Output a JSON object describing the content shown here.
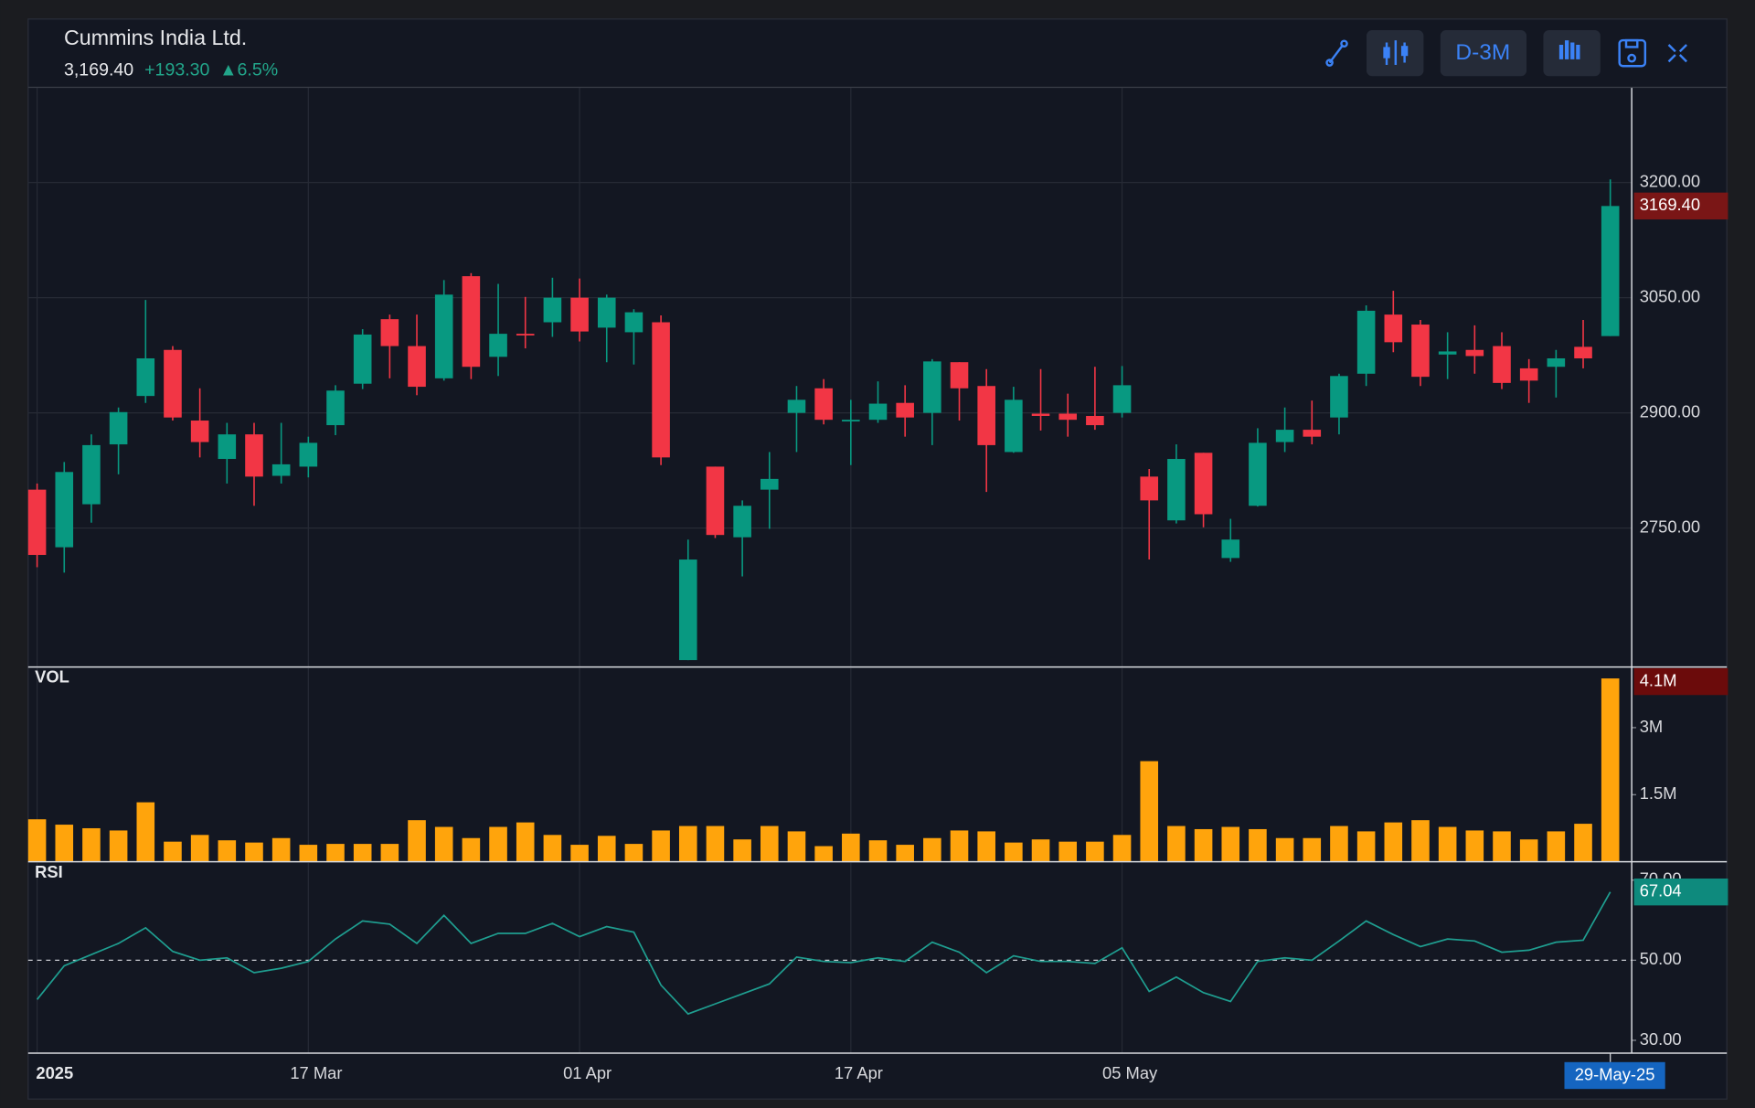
{
  "header": {
    "title": "Cummins India Ltd.",
    "price": "3,169.40",
    "change": "+193.30",
    "change_pct": "▲6.5%",
    "interval": "D-3M"
  },
  "chart_data": [
    {
      "type": "candlestick",
      "up_color": "#089981",
      "down_color": "#f23645",
      "grid": true,
      "xlim": [
        -0.33,
        58.79
      ],
      "xticks": [
        {
          "value": 0,
          "label": "2025"
        },
        {
          "value": 10,
          "label": "17 Mar"
        },
        {
          "value": 20,
          "label": "01 Apr"
        },
        {
          "value": 30,
          "label": "17 Apr"
        },
        {
          "value": 40,
          "label": "05 May"
        }
      ],
      "cursor": {
        "value": 58,
        "label": "29-May-25"
      },
      "ylim": [
        2569,
        3324
      ],
      "yticks": [
        {
          "value": 2750,
          "label": "2750.00"
        },
        {
          "value": 2900,
          "label": "2900.00"
        },
        {
          "value": 3050,
          "label": "3050.00"
        },
        {
          "value": 3200,
          "label": "3200.00"
        }
      ],
      "last_label": "3169.40",
      "open": [
        2800,
        2725,
        2781,
        2859,
        2922,
        2982,
        2890,
        2840,
        2872,
        2818,
        2830,
        2884,
        2938,
        3022,
        2987,
        2945,
        3078,
        2973,
        3003,
        3018,
        3050,
        3011,
        3005,
        3018,
        2578,
        2830,
        2738,
        2800,
        2900,
        2932,
        2890,
        2891,
        2913,
        2900,
        2966,
        2935,
        2849,
        2899,
        2899,
        2896,
        2900,
        2817,
        2760,
        2848,
        2711,
        2779,
        2862,
        2878,
        2894,
        2951,
        3028,
        3015,
        2976,
        2982,
        2987,
        2958,
        2960,
        2986,
        3000
      ],
      "high": [
        2808,
        2836,
        2872,
        2907,
        3047,
        2987,
        2932,
        2887,
        2887,
        2887,
        2869,
        2936,
        3009,
        3028,
        3028,
        3073,
        3082,
        3068,
        3051,
        3076,
        3075,
        3054,
        3035,
        3027,
        2735,
        2830,
        2786,
        2849,
        2935,
        2944,
        2917,
        2941,
        2936,
        2970,
        2966,
        2957,
        2934,
        2957,
        2925,
        2960,
        2961,
        2827,
        2859,
        2848,
        2762,
        2880,
        2907,
        2916,
        2951,
        3040,
        3059,
        3021,
        3005,
        3014,
        3005,
        2970,
        2982,
        3021,
        3204
      ],
      "low": [
        2699,
        2692,
        2757,
        2820,
        2913,
        2890,
        2842,
        2808,
        2779,
        2808,
        2816,
        2871,
        2931,
        2945,
        2923,
        2942,
        2944,
        2948,
        2984,
        2999,
        2993,
        2966,
        2963,
        2832,
        2578,
        2737,
        2687,
        2749,
        2849,
        2885,
        2832,
        2887,
        2869,
        2858,
        2890,
        2797,
        2848,
        2877,
        2869,
        2878,
        2894,
        2709,
        2756,
        2751,
        2706,
        2778,
        2849,
        2859,
        2872,
        2935,
        2979,
        2935,
        2944,
        2951,
        2931,
        2913,
        2920,
        2958,
        3000
      ],
      "close": [
        2715,
        2823,
        2858,
        2901,
        2971,
        2894,
        2862,
        2872,
        2817,
        2833,
        2861,
        2929,
        3002,
        2987,
        2934,
        3054,
        2960,
        3003,
        3002,
        3050,
        3006,
        3050,
        3031,
        2842,
        2709,
        2741,
        2779,
        2814,
        2917,
        2891,
        2891,
        2912,
        2894,
        2967,
        2932,
        2858,
        2917,
        2896,
        2891,
        2884,
        2936,
        2786,
        2840,
        2768,
        2735,
        2861,
        2878,
        2869,
        2948,
        3033,
        2992,
        2947,
        2980,
        2974,
        2939,
        2942,
        2971,
        2971,
        3169.4
      ]
    },
    {
      "type": "bar",
      "title": "VOL",
      "color": "#ffa40c",
      "ylim": [
        0,
        4.33
      ],
      "yticks": [
        {
          "value": 1.5,
          "label": "1.5M"
        },
        {
          "value": 3,
          "label": "3M"
        }
      ],
      "last_label": "4.1M",
      "values": [
        0.95,
        0.83,
        0.75,
        0.7,
        1.33,
        0.45,
        0.6,
        0.48,
        0.43,
        0.53,
        0.38,
        0.4,
        0.4,
        0.4,
        0.93,
        0.78,
        0.53,
        0.78,
        0.88,
        0.6,
        0.38,
        0.58,
        0.4,
        0.7,
        0.8,
        0.8,
        0.5,
        0.8,
        0.68,
        0.35,
        0.63,
        0.48,
        0.38,
        0.53,
        0.7,
        0.68,
        0.43,
        0.5,
        0.45,
        0.45,
        0.6,
        2.25,
        0.8,
        0.73,
        0.78,
        0.73,
        0.53,
        0.53,
        0.8,
        0.68,
        0.88,
        0.93,
        0.78,
        0.7,
        0.68,
        0.5,
        0.68,
        0.85,
        4.1
      ]
    },
    {
      "type": "line",
      "title": "RSI",
      "color": "#1f9e90",
      "ref_line": 50,
      "ylim": [
        26.8,
        74.3
      ],
      "yticks": [
        {
          "value": 30,
          "label": "30.00"
        },
        {
          "value": 50,
          "label": "50.00"
        },
        {
          "value": 70,
          "label": "70.00"
        }
      ],
      "last_label": "67.04",
      "values": [
        40.2,
        48.6,
        51.4,
        54.2,
        58.1,
        52.2,
        50,
        50.6,
        46.9,
        48,
        49.7,
        55.3,
        59.8,
        59,
        54.2,
        61.2,
        54.2,
        56.7,
        56.7,
        59.2,
        55.9,
        58.4,
        57,
        43.8,
        36.6,
        39.1,
        41.6,
        44.1,
        50.8,
        49.7,
        49.4,
        50.6,
        49.7,
        54.5,
        52,
        46.9,
        51.1,
        49.7,
        49.7,
        49.2,
        53.1,
        42.2,
        45.8,
        41.9,
        39.7,
        49.7,
        50.6,
        50,
        54.8,
        59.8,
        56.4,
        53.4,
        55.3,
        54.8,
        52,
        52.5,
        54.5,
        55,
        67.04
      ]
    }
  ]
}
